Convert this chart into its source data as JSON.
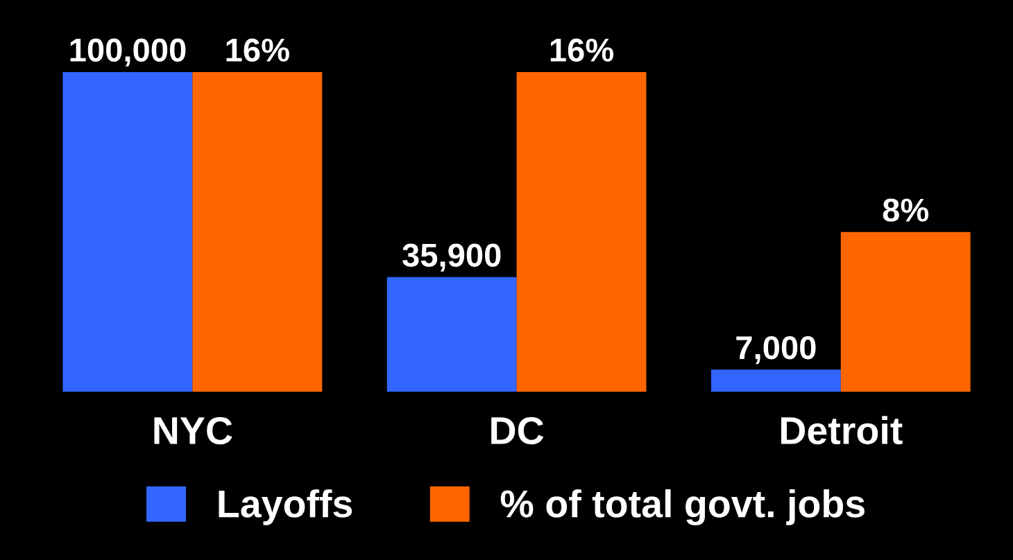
{
  "chart_data": {
    "type": "bar",
    "categories": [
      "NYC",
      "DC",
      "Detroit"
    ],
    "series": [
      {
        "name": "Layoffs",
        "color": "#3366ff",
        "values": [
          100000,
          35900,
          7000
        ],
        "value_labels": [
          "100,000",
          "35,900",
          "7,000"
        ]
      },
      {
        "name": "% of total govt. jobs",
        "color": "#ff6600",
        "values": [
          16,
          16,
          8
        ],
        "value_labels": [
          "16%",
          "16%",
          "8%"
        ],
        "axis": "y2"
      }
    ],
    "tick_labels": "x",
    "grid": false,
    "legend": "bottom"
  }
}
